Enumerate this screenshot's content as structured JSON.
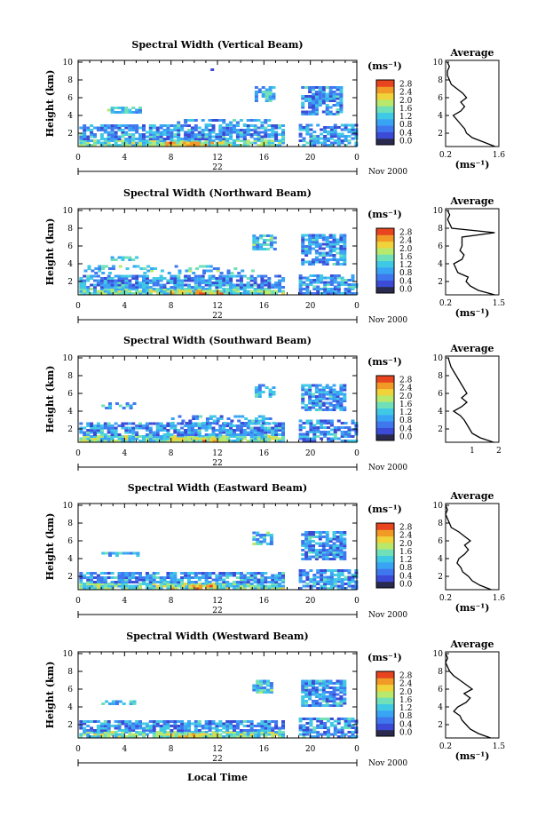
{
  "x_axis": {
    "ticks": [
      "0",
      "4",
      "8",
      "12",
      "16",
      "20",
      "0"
    ],
    "date_day": "22",
    "date_month": "Nov 2000",
    "xlabel": "Local Time"
  },
  "y_axis": {
    "label": "Height (km)",
    "ticks": [
      "2",
      "4",
      "6",
      "8",
      "10"
    ]
  },
  "colorbar": {
    "unit": "(ms⁻¹)",
    "ticks": [
      "0.0",
      "0.4",
      "0.8",
      "1.2",
      "1.6",
      "2.0",
      "2.4",
      "2.8"
    ],
    "colors": [
      "#2a2a4f",
      "#3b4bd6",
      "#3f78ee",
      "#3aa4f4",
      "#40c9e4",
      "#6fe0b8",
      "#b8e86c",
      "#f0d23a",
      "#f29a26",
      "#e8451f"
    ]
  },
  "chart_data": [
    {
      "type": "heatmap",
      "title": "Spectral Width (Vertical Beam)",
      "xlabel": "Local Time",
      "ylabel": "Height (km)",
      "xlim": [
        0,
        24
      ],
      "ylim": [
        0.5,
        10.2
      ],
      "zlim": [
        0.0,
        2.8
      ],
      "layers": [
        {
          "x0": 0.1,
          "x1": 17.8,
          "y0": 0.5,
          "y1": 1.2,
          "level": 5,
          "fill": 0.9
        },
        {
          "x0": 7.5,
          "x1": 13.0,
          "y0": 0.5,
          "y1": 1.0,
          "level": 7,
          "fill": 0.8
        },
        {
          "x0": 0.1,
          "x1": 17.8,
          "y0": 1.2,
          "y1": 2.8,
          "level": 3,
          "fill": 0.75
        },
        {
          "x0": 2.5,
          "x1": 5.2,
          "y0": 4.2,
          "y1": 4.8,
          "level": 4,
          "fill": 0.55
        },
        {
          "x0": 8.5,
          "x1": 16.5,
          "y0": 2.8,
          "y1": 3.5,
          "level": 3,
          "fill": 0.5
        },
        {
          "x0": 15.2,
          "x1": 17.0,
          "y0": 5.5,
          "y1": 7.2,
          "level": 4,
          "fill": 0.7
        },
        {
          "x0": 19.2,
          "x1": 22.8,
          "y0": 4.0,
          "y1": 7.2,
          "level": 3,
          "fill": 0.8
        },
        {
          "x0": 19.0,
          "x1": 24.0,
          "y0": 0.5,
          "y1": 3.0,
          "level": 3,
          "fill": 0.7
        },
        {
          "x0": 9.0,
          "x1": 12.0,
          "y0": 7.5,
          "y1": 9.5,
          "level": 2,
          "fill": 0.05
        }
      ],
      "profile": {
        "xlim": [
          0.2,
          1.6
        ],
        "xticks": [
          "0.2",
          "1.6"
        ],
        "xlabel": "(ms⁻¹)",
        "title": "Average",
        "y": [
          0.5,
          1,
          1.5,
          2,
          2.5,
          3,
          3.5,
          4,
          4.5,
          5,
          5.5,
          6,
          6.5,
          7,
          7.5,
          8,
          8.5,
          9,
          9.5,
          10
        ],
        "x": [
          1.5,
          1.2,
          0.9,
          0.75,
          0.7,
          0.6,
          0.5,
          0.4,
          0.6,
          0.7,
          0.6,
          0.75,
          0.65,
          0.5,
          0.35,
          0.3,
          0.25,
          0.25,
          0.3,
          0.25
        ]
      }
    },
    {
      "type": "heatmap",
      "title": "Spectral Width (Northward Beam)",
      "xlabel": "Local Time",
      "ylabel": "Height (km)",
      "xlim": [
        0,
        24
      ],
      "ylim": [
        0.5,
        10.2
      ],
      "zlim": [
        0.0,
        2.8
      ],
      "layers": [
        {
          "x0": 0.1,
          "x1": 17.8,
          "y0": 0.5,
          "y1": 1.2,
          "level": 5,
          "fill": 0.9
        },
        {
          "x0": 8.0,
          "x1": 12.5,
          "y0": 0.5,
          "y1": 1.0,
          "level": 7,
          "fill": 0.8
        },
        {
          "x0": 0.1,
          "x1": 17.8,
          "y0": 1.2,
          "y1": 2.5,
          "level": 3,
          "fill": 0.75
        },
        {
          "x0": 2.5,
          "x1": 5.0,
          "y0": 4.3,
          "y1": 4.8,
          "level": 4,
          "fill": 0.55
        },
        {
          "x0": 0.5,
          "x1": 15.5,
          "y0": 2.8,
          "y1": 3.6,
          "level": 4,
          "fill": 0.25
        },
        {
          "x0": 15.0,
          "x1": 17.0,
          "y0": 5.5,
          "y1": 7.2,
          "level": 4,
          "fill": 0.7
        },
        {
          "x0": 19.2,
          "x1": 23.0,
          "y0": 3.8,
          "y1": 7.2,
          "level": 3,
          "fill": 0.8
        },
        {
          "x0": 19.0,
          "x1": 24.0,
          "y0": 0.5,
          "y1": 2.7,
          "level": 3,
          "fill": 0.7
        }
      ],
      "profile": {
        "xlim": [
          0.2,
          1.5
        ],
        "xticks": [
          "0.2",
          "1.5"
        ],
        "xlabel": "(ms⁻¹)",
        "title": "Average",
        "y": [
          0.5,
          1,
          1.5,
          2,
          2.5,
          3,
          3.5,
          4,
          4.5,
          5,
          5.5,
          6,
          6.5,
          7,
          7.5,
          8,
          8.5,
          9,
          9.5,
          10
        ],
        "x": [
          1.4,
          1.0,
          0.8,
          0.7,
          0.75,
          0.5,
          0.45,
          0.4,
          0.6,
          0.65,
          0.55,
          0.6,
          0.6,
          0.6,
          1.4,
          0.35,
          0.3,
          0.25,
          0.3,
          0.25
        ]
      }
    },
    {
      "type": "heatmap",
      "title": "Spectral Width (Southward Beam)",
      "xlabel": "Local Time",
      "ylabel": "Height (km)",
      "xlim": [
        0,
        24
      ],
      "ylim": [
        0.5,
        10.2
      ],
      "zlim": [
        0.0,
        2.8
      ],
      "layers": [
        {
          "x0": 0.1,
          "x1": 17.8,
          "y0": 0.5,
          "y1": 1.2,
          "level": 5,
          "fill": 0.9
        },
        {
          "x0": 8.0,
          "x1": 13.0,
          "y0": 0.5,
          "y1": 1.0,
          "level": 7,
          "fill": 0.8
        },
        {
          "x0": 0.1,
          "x1": 17.8,
          "y0": 1.2,
          "y1": 2.5,
          "level": 3,
          "fill": 0.75
        },
        {
          "x0": 2.0,
          "x1": 4.8,
          "y0": 4.2,
          "y1": 4.8,
          "level": 4,
          "fill": 0.55
        },
        {
          "x0": 8.0,
          "x1": 17.0,
          "y0": 2.5,
          "y1": 3.3,
          "level": 3,
          "fill": 0.4
        },
        {
          "x0": 15.2,
          "x1": 17.0,
          "y0": 5.5,
          "y1": 6.8,
          "level": 4,
          "fill": 0.7
        },
        {
          "x0": 19.2,
          "x1": 23.0,
          "y0": 4.0,
          "y1": 7.0,
          "level": 3,
          "fill": 0.8
        },
        {
          "x0": 19.0,
          "x1": 24.0,
          "y0": 0.5,
          "y1": 3.0,
          "level": 3,
          "fill": 0.7
        }
      ],
      "profile": {
        "xlim": [
          0.0,
          2.0
        ],
        "xticks": [
          "1",
          "2"
        ],
        "xlabel": "",
        "title": "Average",
        "y": [
          0.5,
          1,
          1.5,
          2,
          2.5,
          3,
          3.5,
          4,
          4.5,
          5,
          5.5,
          6,
          6.5,
          7,
          7.5,
          8,
          8.5,
          9,
          9.5,
          10
        ],
        "x": [
          1.8,
          1.3,
          1.0,
          0.9,
          0.8,
          0.7,
          0.55,
          0.3,
          0.6,
          0.8,
          0.6,
          0.8,
          0.7,
          0.6,
          0.5,
          0.4,
          0.3,
          0.2,
          0.15,
          0.1
        ]
      }
    },
    {
      "type": "heatmap",
      "title": "Spectral Width (Eastward Beam)",
      "xlabel": "Local Time",
      "ylabel": "Height (km)",
      "xlim": [
        0,
        24
      ],
      "ylim": [
        0.5,
        10.2
      ],
      "zlim": [
        0.0,
        2.8
      ],
      "layers": [
        {
          "x0": 0.1,
          "x1": 17.8,
          "y0": 0.5,
          "y1": 1.2,
          "level": 5,
          "fill": 0.9
        },
        {
          "x0": 8.0,
          "x1": 12.0,
          "y0": 0.5,
          "y1": 1.0,
          "level": 7,
          "fill": 0.8
        },
        {
          "x0": 0.1,
          "x1": 17.8,
          "y0": 1.2,
          "y1": 2.3,
          "level": 3,
          "fill": 0.75
        },
        {
          "x0": 2.0,
          "x1": 5.2,
          "y0": 4.2,
          "y1": 4.7,
          "level": 4,
          "fill": 0.55
        },
        {
          "x0": 15.0,
          "x1": 16.8,
          "y0": 5.5,
          "y1": 6.8,
          "level": 4,
          "fill": 0.7
        },
        {
          "x0": 19.2,
          "x1": 23.0,
          "y0": 3.8,
          "y1": 7.0,
          "level": 3,
          "fill": 0.8
        },
        {
          "x0": 19.0,
          "x1": 24.0,
          "y0": 0.5,
          "y1": 2.6,
          "level": 3,
          "fill": 0.7
        }
      ],
      "profile": {
        "xlim": [
          0.2,
          1.6
        ],
        "xticks": [
          "0.2",
          "1.6"
        ],
        "xlabel": "(ms⁻¹)",
        "title": "Average",
        "y": [
          0.5,
          1,
          1.5,
          2,
          2.5,
          3,
          3.5,
          4,
          4.5,
          5,
          5.5,
          6,
          6.5,
          7,
          7.5,
          8,
          8.5,
          9,
          9.5,
          10
        ],
        "x": [
          1.4,
          1.1,
          0.9,
          0.8,
          0.65,
          0.6,
          0.5,
          0.55,
          0.7,
          0.8,
          0.7,
          0.85,
          0.7,
          0.55,
          0.35,
          0.3,
          0.25,
          0.2,
          0.25,
          0.2
        ]
      }
    },
    {
      "type": "heatmap",
      "title": "Spectral Width (Westward Beam)",
      "xlabel": "Local Time",
      "ylabel": "Height (km)",
      "xlim": [
        0,
        24
      ],
      "ylim": [
        0.5,
        10.2
      ],
      "zlim": [
        0.0,
        2.8
      ],
      "layers": [
        {
          "x0": 0.1,
          "x1": 17.8,
          "y0": 0.5,
          "y1": 1.2,
          "level": 5,
          "fill": 0.9
        },
        {
          "x0": 8.0,
          "x1": 12.0,
          "y0": 0.5,
          "y1": 1.0,
          "level": 7,
          "fill": 0.8
        },
        {
          "x0": 0.1,
          "x1": 17.8,
          "y0": 1.2,
          "y1": 2.3,
          "level": 3,
          "fill": 0.75
        },
        {
          "x0": 2.0,
          "x1": 5.0,
          "y0": 4.2,
          "y1": 4.7,
          "level": 4,
          "fill": 0.55
        },
        {
          "x0": 15.0,
          "x1": 16.8,
          "y0": 5.5,
          "y1": 7.0,
          "level": 4,
          "fill": 0.7
        },
        {
          "x0": 19.2,
          "x1": 23.0,
          "y0": 4.0,
          "y1": 7.0,
          "level": 3,
          "fill": 0.8
        },
        {
          "x0": 19.0,
          "x1": 24.0,
          "y0": 0.5,
          "y1": 2.6,
          "level": 3,
          "fill": 0.7
        }
      ],
      "profile": {
        "xlim": [
          0.2,
          1.5
        ],
        "xticks": [
          "0.2",
          "1.5"
        ],
        "xlabel": "(ms⁻¹)",
        "title": "Average",
        "y": [
          0.5,
          1,
          1.5,
          2,
          2.5,
          3,
          3.5,
          4,
          4.5,
          5,
          5.5,
          6,
          6.5,
          7,
          7.5,
          8,
          8.5,
          9,
          9.5,
          10
        ],
        "x": [
          1.3,
          1.0,
          0.8,
          0.7,
          0.6,
          0.55,
          0.4,
          0.5,
          0.7,
          0.8,
          0.65,
          0.85,
          0.7,
          0.55,
          0.4,
          0.3,
          0.25,
          0.2,
          0.25,
          0.2
        ]
      }
    }
  ]
}
